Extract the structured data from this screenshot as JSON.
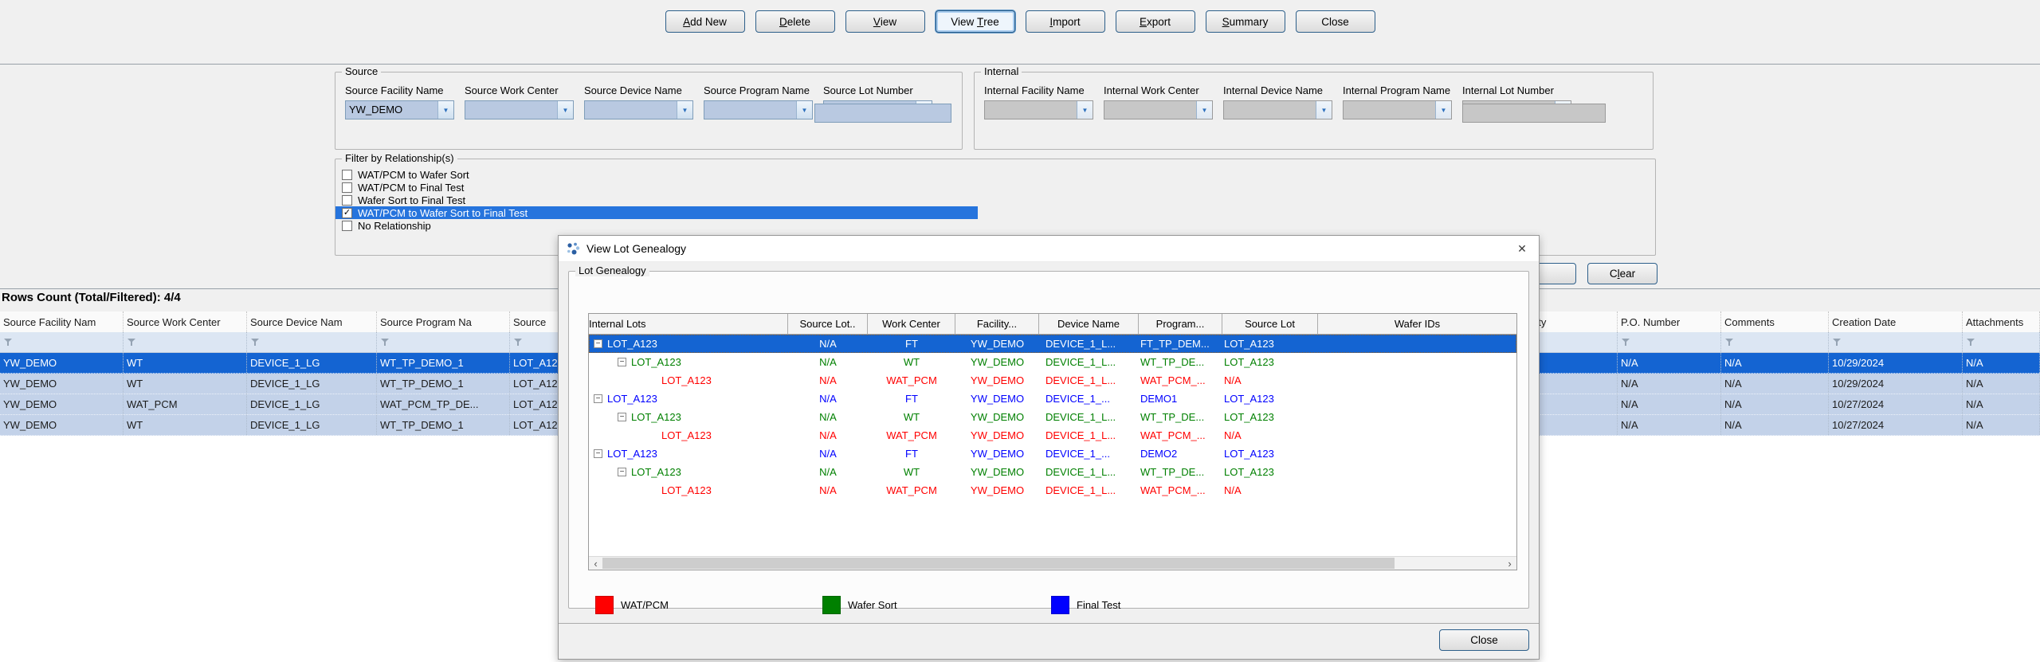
{
  "colors": {
    "selection_blue": "#1464d2",
    "checklist_highlight": "#2674dd",
    "grid_row_blue": "#c3d2e9",
    "wat_pcm_red": "#ff0000",
    "wafer_sort_green": "#008000",
    "final_test_blue": "#0000ff",
    "combo_fill": "#b9c9e1",
    "disabled_fill": "#c7c7c7"
  },
  "toolbar": {
    "buttons": [
      {
        "pre": "",
        "key": "A",
        "post": "dd New",
        "classes": ""
      },
      {
        "pre": "",
        "key": "D",
        "post": "elete",
        "classes": ""
      },
      {
        "pre": "",
        "key": "V",
        "post": "iew",
        "classes": ""
      },
      {
        "pre": "View ",
        "key": "T",
        "post": "ree",
        "classes": "focused"
      },
      {
        "pre": "",
        "key": "I",
        "post": "mport",
        "classes": ""
      },
      {
        "pre": "",
        "key": "E",
        "post": "xport",
        "classes": ""
      },
      {
        "pre": "",
        "key": "S",
        "post": "ummary",
        "classes": ""
      },
      {
        "pre": "Close",
        "key": "",
        "post": "",
        "classes": ""
      }
    ]
  },
  "source_group": {
    "title": "Source",
    "fields": [
      {
        "label": "Source Facility Name",
        "value": "YW_DEMO",
        "kind": "combo"
      },
      {
        "label": "Source Work Center",
        "value": "",
        "kind": "combo"
      },
      {
        "label": "Source Device Name",
        "value": "",
        "kind": "combo"
      },
      {
        "label": "Source Program Name",
        "value": "",
        "kind": "combo"
      },
      {
        "label": "Source Lot Number",
        "value": "",
        "kind": "text"
      }
    ]
  },
  "internal_group": {
    "title": "Internal",
    "fields": [
      {
        "label": "Internal Facility Name",
        "value": "",
        "kind": "combo"
      },
      {
        "label": "Internal Work Center",
        "value": "",
        "kind": "combo"
      },
      {
        "label": "Internal Device Name",
        "value": "",
        "kind": "combo"
      },
      {
        "label": "Internal Program Name",
        "value": "",
        "kind": "combo"
      },
      {
        "label": "Internal Lot Number",
        "value": "",
        "kind": "text"
      }
    ]
  },
  "filter_group": {
    "title": "Filter by Relationship(s)",
    "items": [
      {
        "label": "WAT/PCM to Wafer Sort",
        "classes": ""
      },
      {
        "label": "WAT/PCM to Final Test",
        "classes": ""
      },
      {
        "label": "Wafer Sort to Final Test",
        "classes": ""
      },
      {
        "label": "WAT/PCM to Wafer Sort to Final Test",
        "classes": "checked highlighted"
      },
      {
        "label": "No Relationship",
        "classes": ""
      }
    ]
  },
  "clear_button": {
    "pre": "C",
    "key": "l",
    "post": "ear"
  },
  "rows_count": "Rows Count (Total/Filtered): 4/4",
  "grid": {
    "left": {
      "headers": [
        "Source Facility Nam",
        "Source Work Center",
        "Source Device Nam",
        "Source Program Na",
        "Source"
      ],
      "rows": [
        {
          "classes": "selected",
          "cells": [
            "YW_DEMO",
            "WT",
            "DEVICE_1_LG",
            "WT_TP_DEMO_1",
            "LOT_A123"
          ]
        },
        {
          "classes": "",
          "cells": [
            "YW_DEMO",
            "WT",
            "DEVICE_1_LG",
            "WT_TP_DEMO_1",
            "LOT_A123"
          ]
        },
        {
          "classes": "",
          "cells": [
            "YW_DEMO",
            "WAT_PCM",
            "DEVICE_1_LG",
            "WAT_PCM_TP_DE...",
            "LOT_A123"
          ]
        },
        {
          "classes": "",
          "cells": [
            "YW_DEMO",
            "WT",
            "DEVICE_1_LG",
            "WT_TP_DEMO_1",
            "LOT_A123"
          ]
        }
      ]
    },
    "right": {
      "headers": [
        "r Quantity",
        "P.O. Number",
        "Comments",
        "Creation Date",
        "Attachments"
      ],
      "rows": [
        {
          "classes": "selected",
          "cells": [
            "",
            "N/A",
            "N/A",
            "10/29/2024",
            "N/A"
          ]
        },
        {
          "classes": "",
          "cells": [
            "",
            "N/A",
            "N/A",
            "10/29/2024",
            "N/A"
          ]
        },
        {
          "classes": "",
          "cells": [
            "",
            "N/A",
            "N/A",
            "10/27/2024",
            "N/A"
          ]
        },
        {
          "classes": "",
          "cells": [
            "",
            "N/A",
            "N/A",
            "10/27/2024",
            "N/A"
          ]
        }
      ]
    }
  },
  "dialog": {
    "title": "View Lot Genealogy",
    "close_x": "✕",
    "group_title": "Lot Genealogy",
    "tree": {
      "headers": [
        "Internal Lots",
        "Source Lot..",
        "Work Center",
        "Facility...",
        "Device Name",
        "Program...",
        "Source Lot",
        "Wafer IDs"
      ],
      "rows": [
        {
          "classes": "level-0 final-test selected expandable",
          "cells": [
            "LOT_A123",
            "N/A",
            "FT",
            "YW_DEMO",
            "DEVICE_1_L...",
            "FT_TP_DEM...",
            "LOT_A123",
            ""
          ]
        },
        {
          "classes": "level-1 wafer-sort expandable",
          "cells": [
            "LOT_A123",
            "N/A",
            "WT",
            "YW_DEMO",
            "DEVICE_1_L...",
            "WT_TP_DE...",
            "LOT_A123",
            ""
          ]
        },
        {
          "classes": "level-2 wat-pcm",
          "cells": [
            "LOT_A123",
            "N/A",
            "WAT_PCM",
            "YW_DEMO",
            "DEVICE_1_L...",
            "WAT_PCM_...",
            "N/A",
            ""
          ]
        },
        {
          "classes": "level-0 final-test expandable",
          "cells": [
            "LOT_A123",
            "N/A",
            "FT",
            "YW_DEMO",
            "DEVICE_1_...",
            "DEMO1",
            "LOT_A123",
            ""
          ]
        },
        {
          "classes": "level-1 wafer-sort expandable",
          "cells": [
            "LOT_A123",
            "N/A",
            "WT",
            "YW_DEMO",
            "DEVICE_1_L...",
            "WT_TP_DE...",
            "LOT_A123",
            ""
          ]
        },
        {
          "classes": "level-2 wat-pcm",
          "cells": [
            "LOT_A123",
            "N/A",
            "WAT_PCM",
            "YW_DEMO",
            "DEVICE_1_L...",
            "WAT_PCM_...",
            "N/A",
            ""
          ]
        },
        {
          "classes": "level-0 final-test expandable",
          "cells": [
            "LOT_A123",
            "N/A",
            "FT",
            "YW_DEMO",
            "DEVICE_1_...",
            "DEMO2",
            "LOT_A123",
            ""
          ]
        },
        {
          "classes": "level-1 wafer-sort expandable",
          "cells": [
            "LOT_A123",
            "N/A",
            "WT",
            "YW_DEMO",
            "DEVICE_1_L...",
            "WT_TP_DE...",
            "LOT_A123",
            ""
          ]
        },
        {
          "classes": "level-2 wat-pcm",
          "cells": [
            "LOT_A123",
            "N/A",
            "WAT_PCM",
            "YW_DEMO",
            "DEVICE_1_L...",
            "WAT_PCM_...",
            "N/A",
            ""
          ]
        }
      ]
    },
    "scrollbar": {
      "left_arrow": "‹",
      "right_arrow": "›"
    },
    "legend": [
      {
        "label": "WAT/PCM",
        "color": "#ff0000"
      },
      {
        "label": "Wafer Sort",
        "color": "#008000"
      },
      {
        "label": "Final Test",
        "color": "#0000ff"
      }
    ],
    "close_label": "Close"
  }
}
